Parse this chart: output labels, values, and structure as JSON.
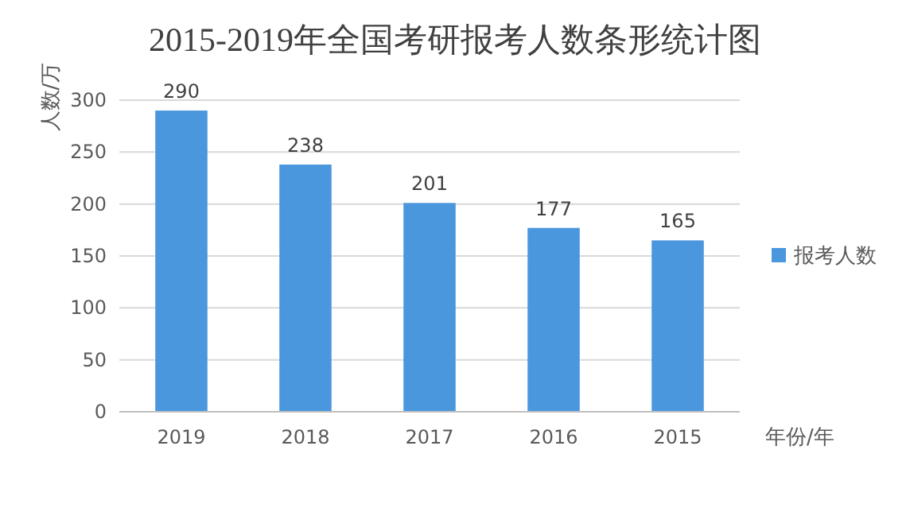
{
  "chart_data": {
    "type": "bar",
    "title": "2015-2019年全国考研报考人数条形统计图",
    "ylabel": "人数/万",
    "xlabel": "年份/年",
    "categories": [
      "2019",
      "2018",
      "2017",
      "2016",
      "2015"
    ],
    "series": [
      {
        "name": "报考人数",
        "color": "#4a97dd",
        "values": [
          290,
          238,
          201,
          177,
          165
        ]
      }
    ],
    "ylim": [
      0,
      300
    ],
    "yticks": [
      0,
      50,
      100,
      150,
      200,
      250,
      300
    ],
    "grid": "y",
    "legend": "right",
    "data_labels": true
  }
}
